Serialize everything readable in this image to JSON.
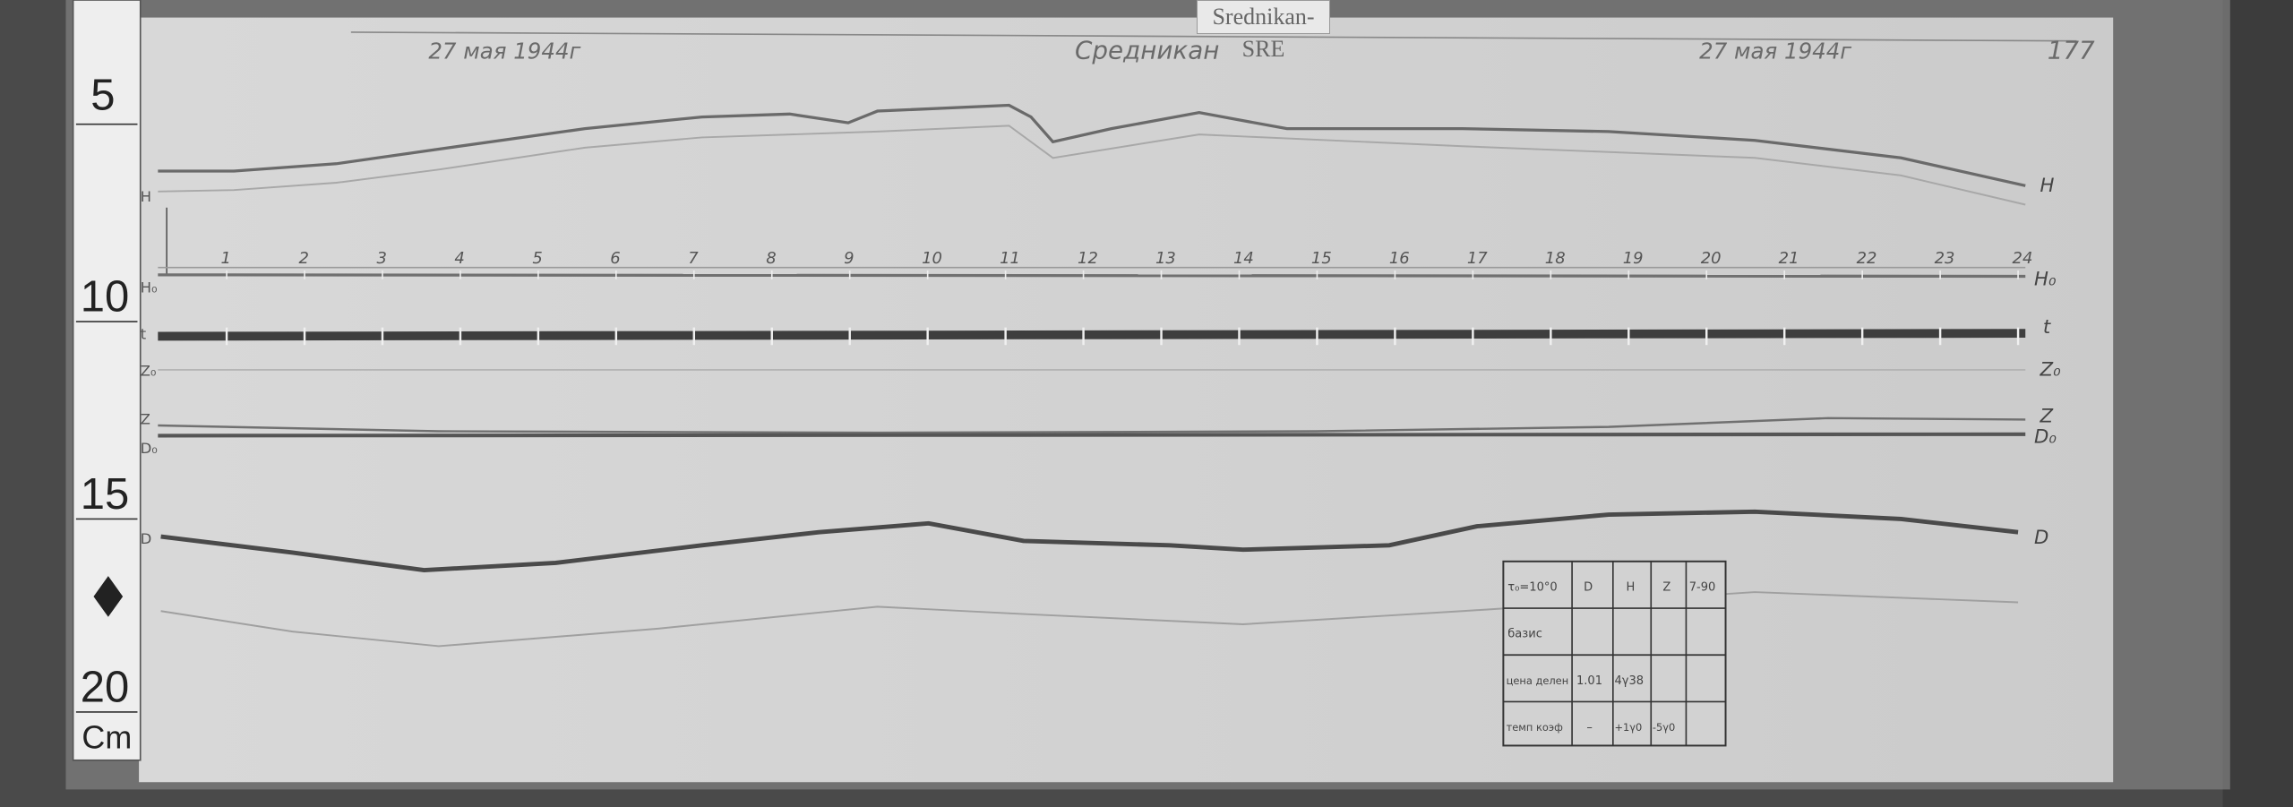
{
  "station_label": "Srednikan-SRE",
  "header": {
    "date_left": "27 мая 1944г",
    "station": "Средникан",
    "date_right": "27 мая 1944г",
    "sheet_number": "177"
  },
  "ruler": {
    "marks": [
      "5",
      "10",
      "15",
      "20"
    ],
    "unit": "Cm"
  },
  "hour_labels": [
    "1",
    "2",
    "3",
    "4",
    "5",
    "6",
    "7",
    "8",
    "9",
    "10",
    "11",
    "12",
    "13",
    "14",
    "15",
    "16",
    "17",
    "18",
    "19",
    "20",
    "21",
    "22",
    "23",
    "24"
  ],
  "trace_labels_left": [
    "H",
    "H₀",
    "t",
    "Z₀",
    "Z",
    "D₀",
    "D"
  ],
  "trace_labels_right": [
    "H",
    "H₀",
    "t",
    "Z₀",
    "Z",
    "D₀",
    "D"
  ],
  "table": {
    "header": [
      "τ₀=10°0",
      "D",
      "H",
      "Z",
      "7-90"
    ],
    "rows": [
      [
        "базис",
        "",
        "",
        "",
        ""
      ],
      [
        "цена делен",
        "1.01",
        "4γ38",
        "",
        ""
      ],
      [
        "темп коэф",
        "–",
        "+1γ0",
        "-5γ0",
        ""
      ]
    ]
  },
  "colors": {
    "paper": "#d4d4d4",
    "trace": "#5a5a5a",
    "background": "#474747"
  }
}
